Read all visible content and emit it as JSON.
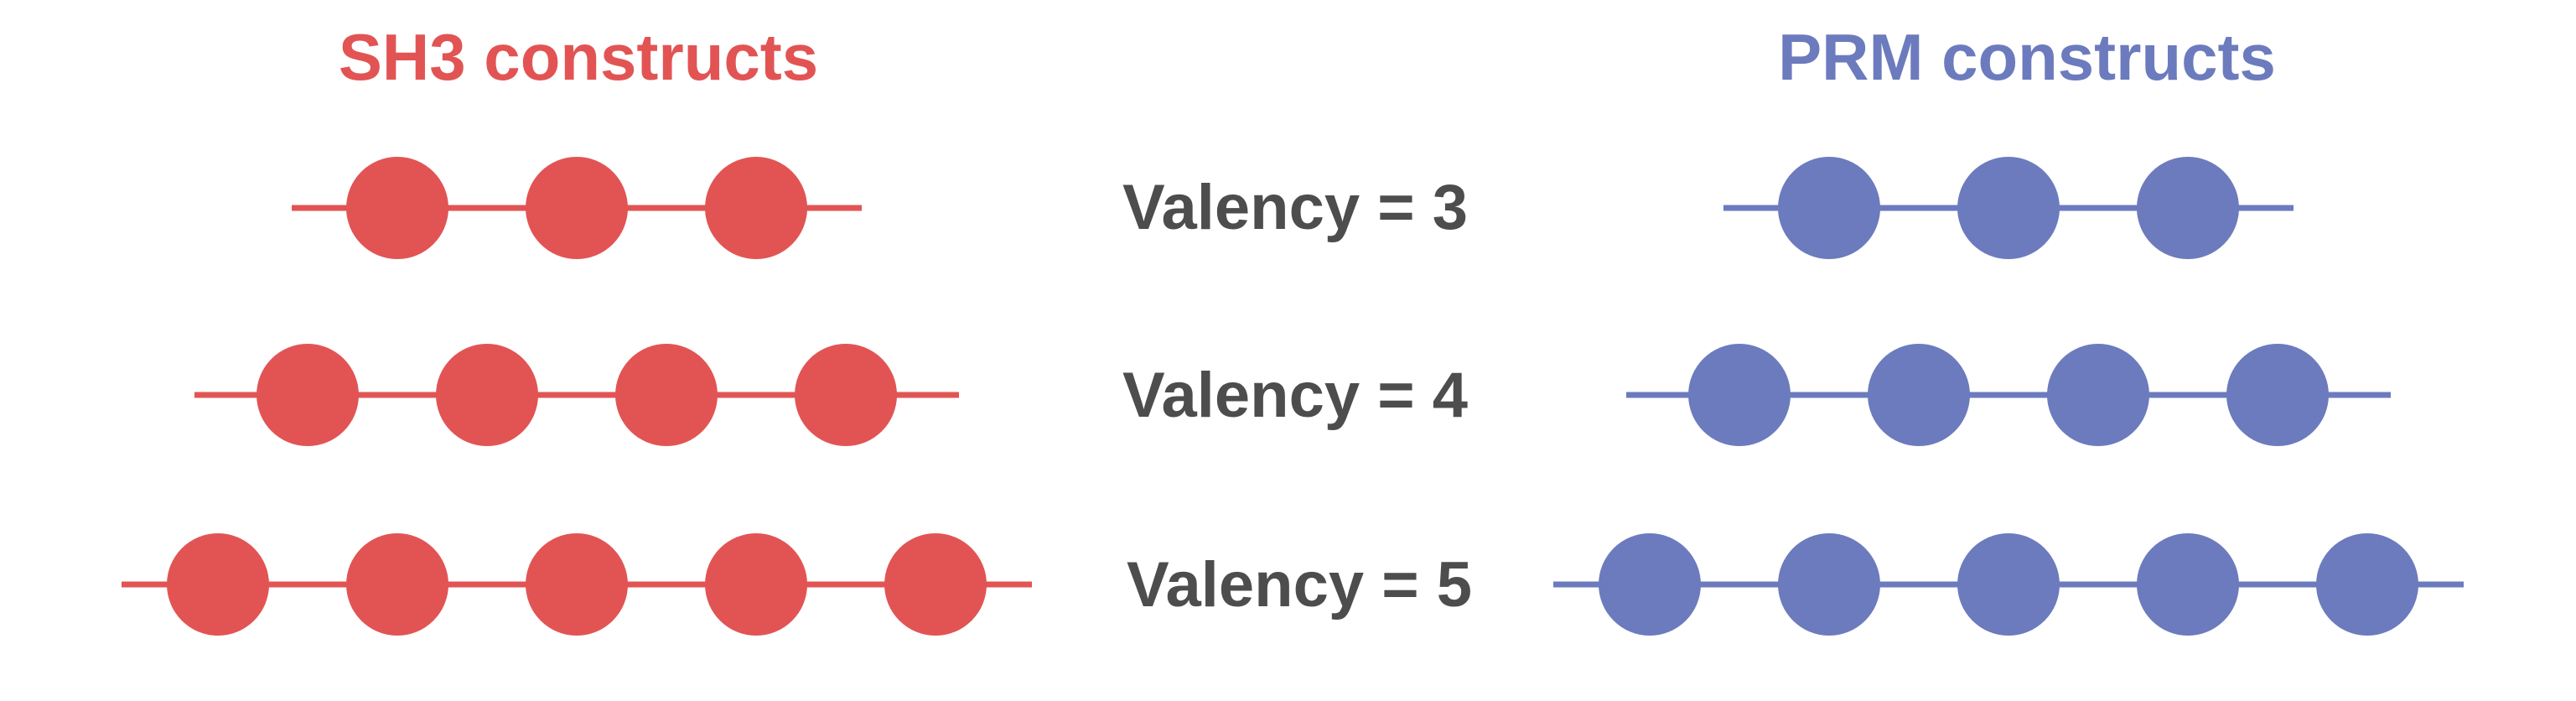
{
  "colors": {
    "sh3": "#e25454",
    "prm": "#6c7bbd",
    "label": "#4d4d4d"
  },
  "titles": {
    "sh3": "SH3 constructs",
    "prm": "PRM constructs"
  },
  "rows": [
    {
      "label": "Valency = 3",
      "valency": 3
    },
    {
      "label": "Valency = 4",
      "valency": 4
    },
    {
      "label": "Valency = 5",
      "valency": 5
    }
  ]
}
